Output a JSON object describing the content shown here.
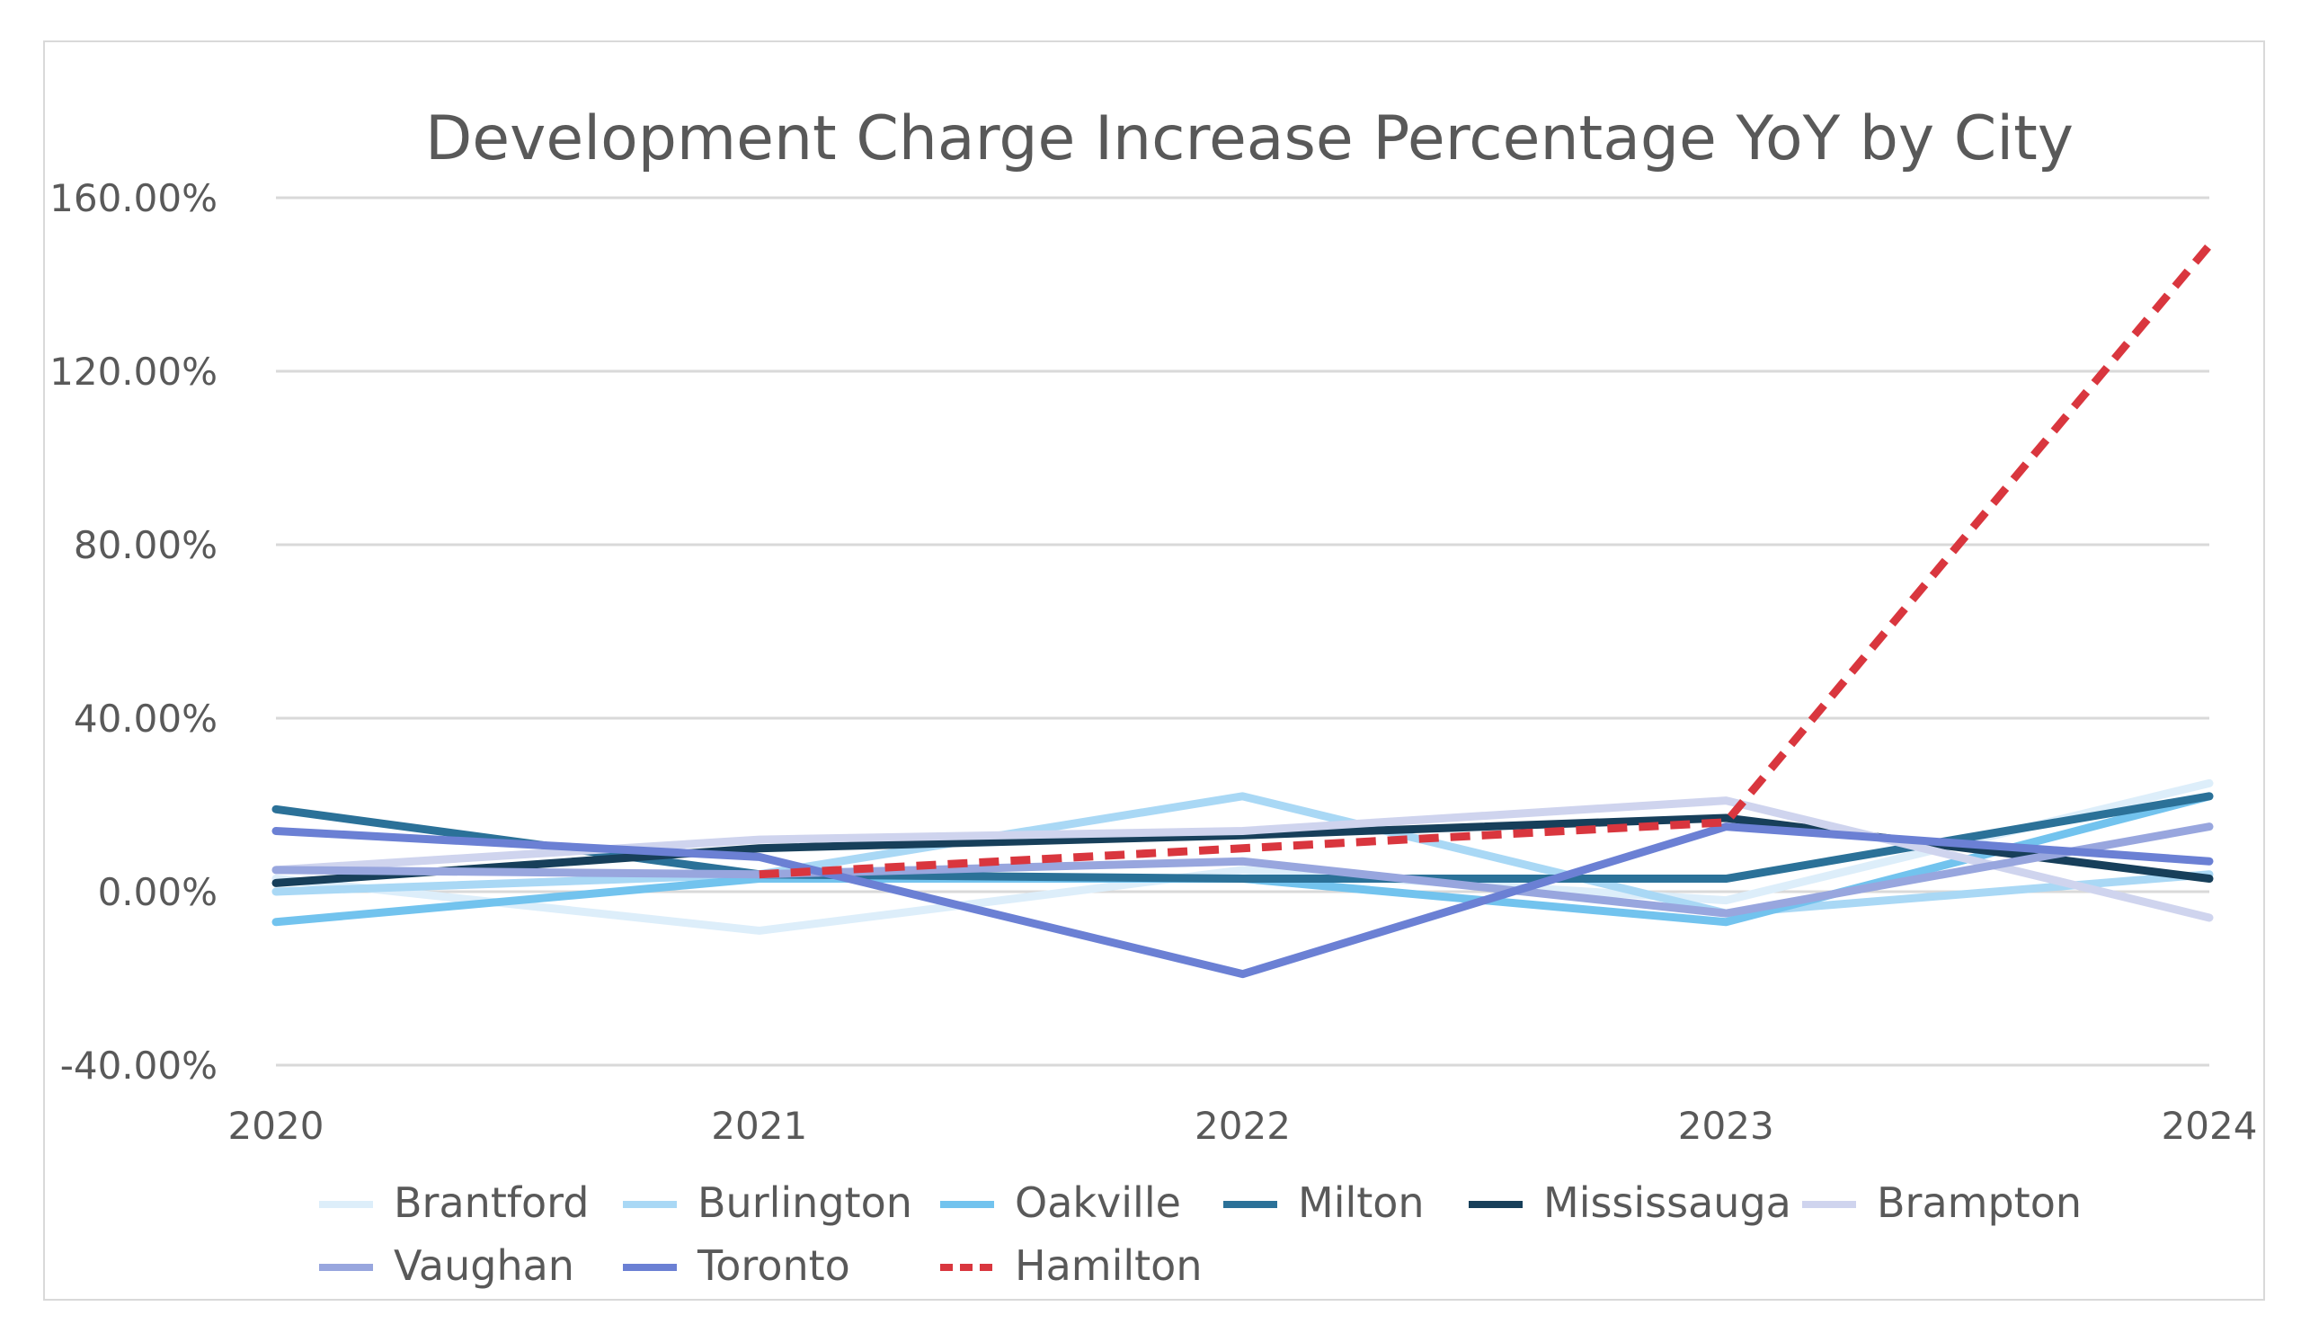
{
  "chart_data": {
    "type": "line",
    "title": "Development Charge Increase Percentage YoY by City",
    "xlabel": "",
    "ylabel": "",
    "categories": [
      "2020",
      "2021",
      "2022",
      "2023",
      "2024"
    ],
    "ylim": [
      -40,
      160
    ],
    "yticks": [
      160,
      120,
      80,
      40,
      0,
      -40
    ],
    "ytick_labels": [
      "160.00%",
      "120.00%",
      "80.00%",
      "40.00%",
      "0.00%",
      "-40.00%"
    ],
    "grid": true,
    "legend_position": "bottom",
    "series": [
      {
        "name": "Brantford",
        "color": "#ddeefa",
        "dashed": false,
        "values": [
          3,
          -9,
          5,
          -2,
          25
        ]
      },
      {
        "name": "Burlington",
        "color": "#a9d8f5",
        "dashed": false,
        "values": [
          0,
          4,
          22,
          -5,
          4
        ]
      },
      {
        "name": "Oakville",
        "color": "#72c3ee",
        "dashed": false,
        "values": [
          -7,
          3,
          3,
          -7,
          22
        ]
      },
      {
        "name": "Milton",
        "color": "#2b7198",
        "dashed": false,
        "values": [
          19,
          4,
          3,
          3,
          22
        ]
      },
      {
        "name": "Mississauga",
        "color": "#173f5a",
        "dashed": false,
        "values": [
          2,
          10,
          13,
          17,
          3
        ]
      },
      {
        "name": "Brampton",
        "color": "#cfd4ee",
        "dashed": false,
        "values": [
          5,
          12,
          14,
          21,
          -6
        ]
      },
      {
        "name": "Vaughan",
        "color": "#98a6de",
        "dashed": false,
        "values": [
          5,
          4,
          7,
          -5,
          15
        ]
      },
      {
        "name": "Toronto",
        "color": "#6b80d4",
        "dashed": false,
        "values": [
          14,
          8,
          -19,
          15,
          7
        ]
      },
      {
        "name": "Hamilton",
        "color": "#d9363e",
        "dashed": true,
        "values": [
          null,
          4,
          10,
          16,
          149
        ]
      }
    ]
  }
}
